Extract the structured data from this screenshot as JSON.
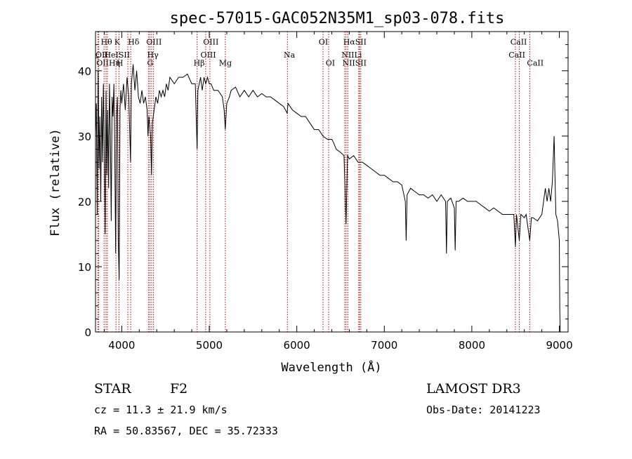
{
  "chart_data": {
    "type": "line",
    "title": "spec-57015-GAC052N35M1_sp03-078.fits",
    "xlabel": "Wavelength (Å)",
    "ylabel": "Flux (relative)",
    "xlim": [
      3700,
      9100
    ],
    "ylim": [
      0,
      46
    ],
    "xticks": [
      4000,
      5000,
      6000,
      7000,
      8000,
      9000
    ],
    "yticks": [
      0,
      10,
      20,
      30,
      40
    ],
    "grid": false,
    "series": [
      {
        "values": [
          [
            3700,
            30
          ],
          [
            3710,
            35
          ],
          [
            3720,
            18
          ],
          [
            3730,
            40
          ],
          [
            3740,
            25
          ],
          [
            3750,
            33
          ],
          [
            3760,
            20
          ],
          [
            3770,
            36
          ],
          [
            3780,
            26
          ],
          [
            3790,
            38
          ],
          [
            3800,
            28
          ],
          [
            3810,
            15
          ],
          [
            3820,
            37
          ],
          [
            3830,
            24
          ],
          [
            3840,
            34
          ],
          [
            3850,
            22
          ],
          [
            3860,
            38
          ],
          [
            3870,
            30
          ],
          [
            3880,
            17
          ],
          [
            3890,
            36
          ],
          [
            3900,
            33
          ],
          [
            3910,
            38
          ],
          [
            3920,
            28
          ],
          [
            3930,
            12
          ],
          [
            3940,
            33
          ],
          [
            3950,
            36
          ],
          [
            3960,
            14
          ],
          [
            3970,
            8
          ],
          [
            3980,
            34
          ],
          [
            3990,
            37
          ],
          [
            4000,
            35
          ],
          [
            4020,
            38
          ],
          [
            4040,
            34
          ],
          [
            4060,
            39
          ],
          [
            4080,
            36
          ],
          [
            4100,
            26
          ],
          [
            4110,
            38
          ],
          [
            4130,
            41
          ],
          [
            4150,
            37
          ],
          [
            4170,
            40
          ],
          [
            4190,
            36
          ],
          [
            4210,
            35
          ],
          [
            4230,
            37
          ],
          [
            4250,
            35
          ],
          [
            4270,
            36
          ],
          [
            4290,
            34
          ],
          [
            4300,
            30
          ],
          [
            4310,
            33
          ],
          [
            4330,
            30
          ],
          [
            4340,
            24
          ],
          [
            4350,
            32
          ],
          [
            4370,
            34
          ],
          [
            4390,
            36
          ],
          [
            4410,
            35
          ],
          [
            4430,
            37
          ],
          [
            4450,
            36
          ],
          [
            4470,
            37
          ],
          [
            4490,
            36
          ],
          [
            4510,
            38
          ],
          [
            4530,
            37
          ],
          [
            4550,
            39
          ],
          [
            4600,
            38
          ],
          [
            4650,
            39
          ],
          [
            4700,
            39
          ],
          [
            4750,
            39.5
          ],
          [
            4800,
            38
          ],
          [
            4840,
            38
          ],
          [
            4861,
            28
          ],
          [
            4870,
            37
          ],
          [
            4900,
            39
          ],
          [
            4920,
            37
          ],
          [
            4940,
            39
          ],
          [
            4960,
            38
          ],
          [
            4980,
            39
          ],
          [
            5000,
            38
          ],
          [
            5020,
            38
          ],
          [
            5050,
            37
          ],
          [
            5100,
            37
          ],
          [
            5150,
            36
          ],
          [
            5170,
            34
          ],
          [
            5183,
            31
          ],
          [
            5200,
            35
          ],
          [
            5230,
            36
          ],
          [
            5250,
            37
          ],
          [
            5300,
            37.5
          ],
          [
            5350,
            36
          ],
          [
            5400,
            37
          ],
          [
            5450,
            36
          ],
          [
            5500,
            37
          ],
          [
            5550,
            36
          ],
          [
            5600,
            36.5
          ],
          [
            5650,
            36
          ],
          [
            5700,
            36
          ],
          [
            5750,
            35.5
          ],
          [
            5800,
            35
          ],
          [
            5850,
            34.5
          ],
          [
            5890,
            33.5
          ],
          [
            5900,
            35
          ],
          [
            5950,
            34
          ],
          [
            6000,
            33.5
          ],
          [
            6050,
            33
          ],
          [
            6100,
            33
          ],
          [
            6150,
            32
          ],
          [
            6200,
            31
          ],
          [
            6250,
            31
          ],
          [
            6300,
            30
          ],
          [
            6350,
            29.5
          ],
          [
            6400,
            29.5
          ],
          [
            6420,
            29
          ],
          [
            6450,
            28
          ],
          [
            6500,
            27.5
          ],
          [
            6540,
            27
          ],
          [
            6563,
            16.5
          ],
          [
            6580,
            27
          ],
          [
            6600,
            26.5
          ],
          [
            6650,
            27
          ],
          [
            6700,
            26
          ],
          [
            6750,
            26
          ],
          [
            6800,
            25.5
          ],
          [
            6850,
            25
          ],
          [
            6900,
            24.5
          ],
          [
            6950,
            24
          ],
          [
            7000,
            24
          ],
          [
            7050,
            23.5
          ],
          [
            7100,
            23
          ],
          [
            7150,
            23
          ],
          [
            7200,
            22.5
          ],
          [
            7240,
            20
          ],
          [
            7250,
            14
          ],
          [
            7260,
            21
          ],
          [
            7300,
            22
          ],
          [
            7350,
            21.5
          ],
          [
            7400,
            21
          ],
          [
            7450,
            21
          ],
          [
            7500,
            20.5
          ],
          [
            7550,
            21
          ],
          [
            7600,
            20
          ],
          [
            7650,
            21
          ],
          [
            7700,
            20
          ],
          [
            7710,
            12
          ],
          [
            7720,
            20
          ],
          [
            7760,
            20.5
          ],
          [
            7800,
            19
          ],
          [
            7810,
            12.5
          ],
          [
            7820,
            20
          ],
          [
            7850,
            20
          ],
          [
            7900,
            20.5
          ],
          [
            7950,
            20
          ],
          [
            8000,
            20
          ],
          [
            8050,
            20
          ],
          [
            8100,
            19.5
          ],
          [
            8150,
            19
          ],
          [
            8200,
            18.5
          ],
          [
            8250,
            19
          ],
          [
            8300,
            18.5
          ],
          [
            8350,
            18
          ],
          [
            8400,
            18
          ],
          [
            8450,
            18
          ],
          [
            8480,
            18
          ],
          [
            8498,
            13
          ],
          [
            8510,
            18
          ],
          [
            8542,
            14
          ],
          [
            8560,
            18
          ],
          [
            8600,
            17.5
          ],
          [
            8620,
            18
          ],
          [
            8662,
            14
          ],
          [
            8680,
            17.5
          ],
          [
            8700,
            17.5
          ],
          [
            8750,
            17
          ],
          [
            8800,
            18
          ],
          [
            8820,
            20
          ],
          [
            8840,
            22
          ],
          [
            8860,
            20
          ],
          [
            8880,
            22
          ],
          [
            8900,
            20
          ],
          [
            8920,
            23
          ],
          [
            8940,
            30
          ],
          [
            8950,
            24
          ],
          [
            8960,
            18
          ],
          [
            8980,
            17
          ],
          [
            9000,
            14
          ],
          [
            9005,
            3
          ],
          [
            9010,
            0
          ]
        ]
      }
    ],
    "lines": [
      {
        "label": "Hθ",
        "x": 3798
      },
      {
        "label": "OII",
        "x": 3727
      },
      {
        "label": "OII",
        "x": 3737
      },
      {
        "label": "HeI",
        "x": 3820
      },
      {
        "label": "Hη",
        "x": 3835
      },
      {
        "label": "K",
        "x": 3934
      },
      {
        "label": "H",
        "x": 3968
      },
      {
        "label": "SII",
        "x": 4070
      },
      {
        "label": "Hδ",
        "x": 4102
      },
      {
        "label": "OIII",
        "x": 4321
      },
      {
        "label": "Hγ",
        "x": 4341
      },
      {
        "label": "G",
        "x": 4305
      },
      {
        "label": "OIII",
        "x": 4363
      },
      {
        "label": "Hβ",
        "x": 4861
      },
      {
        "label": "OIII",
        "x": 4959
      },
      {
        "label": "OIII",
        "x": 5007
      },
      {
        "label": "Mg",
        "x": 5183
      },
      {
        "label": "Na",
        "x": 5893
      },
      {
        "label": "OI",
        "x": 6300
      },
      {
        "label": "OI",
        "x": 6364
      },
      {
        "label": "Hα",
        "x": 6563
      },
      {
        "label": "NII",
        "x": 6548
      },
      {
        "label": "NII",
        "x": 6584
      },
      {
        "label": "SII",
        "x": 6717
      },
      {
        "label": "SII",
        "x": 6731
      },
      {
        "label": "Li",
        "x": 6708
      },
      {
        "label": "CaII",
        "x": 8498
      },
      {
        "label": "CaII",
        "x": 8542
      },
      {
        "label": "CaII",
        "x": 8662
      }
    ],
    "labels": [
      {
        "text": "Hθ",
        "x": 3760,
        "y": 44
      },
      {
        "text": "OII",
        "x": 3700,
        "y": 42
      },
      {
        "text": "OIIHη",
        "x": 3710,
        "y": 40.8
      },
      {
        "text": "K",
        "x": 3915,
        "y": 44
      },
      {
        "text": "HeISII",
        "x": 3800,
        "y": 42
      },
      {
        "text": "H",
        "x": 3940,
        "y": 40.8
      },
      {
        "text": "Hδ",
        "x": 4070,
        "y": 44
      },
      {
        "text": "OIII",
        "x": 4280,
        "y": 44
      },
      {
        "text": "Hγ",
        "x": 4290,
        "y": 42
      },
      {
        "text": "G",
        "x": 4290,
        "y": 40.8
      },
      {
        "text": "Hβ",
        "x": 4820,
        "y": 40.8
      },
      {
        "text": "OIII",
        "x": 4930,
        "y": 44
      },
      {
        "text": "OIII",
        "x": 4900,
        "y": 42
      },
      {
        "text": "Mg",
        "x": 5110,
        "y": 40.8
      },
      {
        "text": "Na",
        "x": 5850,
        "y": 42
      },
      {
        "text": "OI",
        "x": 6250,
        "y": 44
      },
      {
        "text": "OI",
        "x": 6330,
        "y": 40.8
      },
      {
        "text": "HαSII",
        "x": 6530,
        "y": 44
      },
      {
        "text": "NIILi",
        "x": 6510,
        "y": 42
      },
      {
        "text": "NIISII",
        "x": 6520,
        "y": 40.8
      },
      {
        "text": "CaII",
        "x": 8440,
        "y": 44
      },
      {
        "text": "CaII",
        "x": 8420,
        "y": 42
      },
      {
        "text": "CaII",
        "x": 8630,
        "y": 40.8
      }
    ]
  },
  "info": {
    "object_class": "STAR",
    "subclass": "F2",
    "survey": "LAMOST DR3",
    "cz": "cz = 11.3 ± 21.9 km/s",
    "obs_date": "Obs-Date: 20141223",
    "radec": "RA =  50.83567, DEC =  35.72333"
  },
  "colors": {
    "line_marker": "#cc0000",
    "spectrum": "#000000"
  }
}
